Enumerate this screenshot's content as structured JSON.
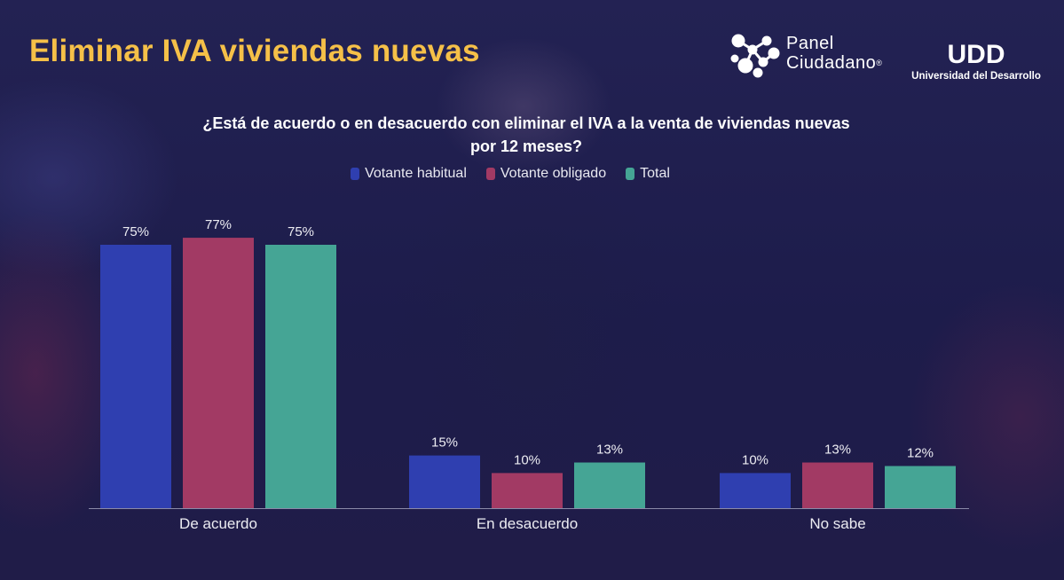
{
  "header": {
    "title": "Eliminar IVA viviendas nuevas",
    "logo_panel_line1": "Panel",
    "logo_panel_line2": "Ciudadano",
    "logo_panel_mark": "®",
    "logo_udd_mark": "UDD",
    "logo_udd_caption": "Universidad del Desarrollo"
  },
  "colors": {
    "title": "#f5c048",
    "series_habitual": "#2f3fb0",
    "series_obligado": "#a23a64",
    "series_total": "#45a595"
  },
  "chart_data": {
    "type": "bar",
    "title": "¿Está de acuerdo o en desacuerdo con eliminar el IVA a la venta de viviendas nuevas por 12 meses?",
    "title_lines": [
      "¿Está de acuerdo o en desacuerdo con eliminar el IVA a la venta de viviendas nuevas",
      "por 12 meses?"
    ],
    "categories": [
      "De acuerdo",
      "En desacuerdo",
      "No sabe"
    ],
    "series": [
      {
        "name": "Votante habitual",
        "values": [
          75,
          15,
          10
        ],
        "labels": [
          "75%",
          "15%",
          "10%"
        ],
        "color": "#2f3fb0"
      },
      {
        "name": "Votante obligado",
        "values": [
          77,
          10,
          13
        ],
        "labels": [
          "77%",
          "10%",
          "13%"
        ],
        "color": "#a23a64"
      },
      {
        "name": "Total",
        "values": [
          75,
          13,
          12
        ],
        "labels": [
          "75%",
          "13%",
          "12%"
        ],
        "color": "#45a595"
      }
    ],
    "ylim": [
      0,
      80
    ],
    "xlabel": "",
    "ylabel": "",
    "grid": false,
    "legend_position": "top-center",
    "value_unit": "%"
  }
}
